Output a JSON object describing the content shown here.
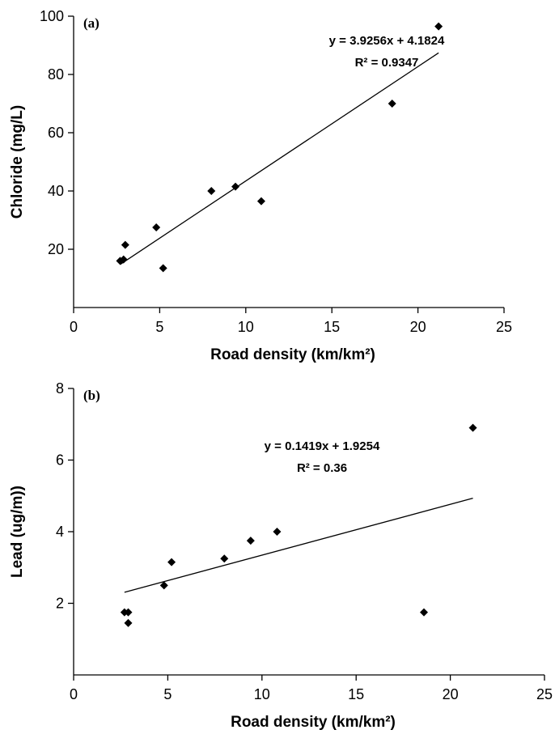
{
  "chart_data": [
    {
      "type": "scatter",
      "panel_label": "(a)",
      "xlabel": "Road density (km/km²)",
      "ylabel": "Chloride (mg/L)",
      "xlim": [
        0,
        25
      ],
      "ylim": [
        0,
        100
      ],
      "x_ticks": [
        0,
        5,
        10,
        15,
        20,
        25
      ],
      "y_ticks": [
        20,
        40,
        60,
        80,
        100
      ],
      "points": [
        {
          "x": 2.7,
          "y": 16
        },
        {
          "x": 2.9,
          "y": 16.5
        },
        {
          "x": 3.0,
          "y": 21.5
        },
        {
          "x": 4.8,
          "y": 27.5
        },
        {
          "x": 5.2,
          "y": 13.5
        },
        {
          "x": 8.0,
          "y": 40
        },
        {
          "x": 9.4,
          "y": 41.5
        },
        {
          "x": 10.9,
          "y": 36.5
        },
        {
          "x": 18.5,
          "y": 70
        },
        {
          "x": 21.2,
          "y": 96.5
        }
      ],
      "trendline": {
        "slope": 3.9256,
        "intercept": 4.1824,
        "x_range": [
          2.7,
          21.2
        ]
      },
      "equation": "y = 3.9256x + 4.1824",
      "r2_label": "R² = 0.9347",
      "grid": false
    },
    {
      "type": "scatter",
      "panel_label": "(b)",
      "xlabel": "Road density (km/km²)",
      "ylabel": "Lead (ug/m))",
      "xlim": [
        0,
        25
      ],
      "ylim": [
        0,
        8
      ],
      "x_ticks": [
        0,
        5,
        10,
        15,
        20,
        25
      ],
      "y_ticks": [
        2,
        4,
        6,
        8
      ],
      "points": [
        {
          "x": 2.7,
          "y": 1.75
        },
        {
          "x": 2.9,
          "y": 1.75
        },
        {
          "x": 2.9,
          "y": 1.45
        },
        {
          "x": 4.8,
          "y": 2.5
        },
        {
          "x": 5.2,
          "y": 3.15
        },
        {
          "x": 8.0,
          "y": 3.25
        },
        {
          "x": 9.4,
          "y": 3.75
        },
        {
          "x": 10.8,
          "y": 4.0
        },
        {
          "x": 18.6,
          "y": 1.75
        },
        {
          "x": 21.2,
          "y": 6.9
        }
      ],
      "trendline": {
        "slope": 0.1419,
        "intercept": 1.9254,
        "x_range": [
          2.7,
          21.2
        ]
      },
      "equation": "y = 0.1419x + 1.9254",
      "r2_label": "R² = 0.36",
      "grid": false
    }
  ]
}
